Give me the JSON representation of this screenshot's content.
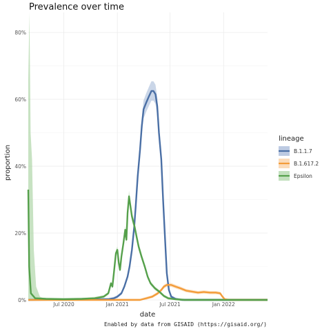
{
  "chart_data": {
    "type": "line",
    "title": "Prevalence over time",
    "xlabel": "date",
    "ylabel": "proportion",
    "caption": "Enabled by data from GISAID (https://gisaid.org/)",
    "legend": {
      "title": "lineage",
      "position": "right"
    },
    "x_ticks": [
      {
        "label": "Jul 2020",
        "date": "2020-07-01"
      },
      {
        "label": "Jan 2021",
        "date": "2021-01-01"
      },
      {
        "label": "Jul 2021",
        "date": "2021-07-01"
      },
      {
        "label": "Jan 2022",
        "date": "2022-01-01"
      }
    ],
    "y_ticks": [
      {
        "label": "0%",
        "value": 0
      },
      {
        "label": "20%",
        "value": 0.2
      },
      {
        "label": "40%",
        "value": 0.4
      },
      {
        "label": "60%",
        "value": 0.6
      },
      {
        "label": "80%",
        "value": 0.8
      }
    ],
    "xlim": [
      "2020-03-01",
      "2022-06-01"
    ],
    "ylim": [
      0,
      0.86
    ],
    "grid": true,
    "series": [
      {
        "name": "B.1.1.7",
        "color": "#4a6fa5",
        "band_color": "#9fb4d6",
        "points": [
          [
            "2020-03-01",
            0
          ],
          [
            "2020-12-01",
            0.002
          ],
          [
            "2020-12-20",
            0.005
          ],
          [
            "2021-01-01",
            0.01
          ],
          [
            "2021-01-15",
            0.02
          ],
          [
            "2021-01-25",
            0.04
          ],
          [
            "2021-02-05",
            0.07
          ],
          [
            "2021-02-12",
            0.1
          ],
          [
            "2021-02-20",
            0.15
          ],
          [
            "2021-02-28",
            0.22
          ],
          [
            "2021-03-05",
            0.28
          ],
          [
            "2021-03-12",
            0.37
          ],
          [
            "2021-03-20",
            0.45
          ],
          [
            "2021-03-26",
            0.52
          ],
          [
            "2021-04-01",
            0.57
          ],
          [
            "2021-04-10",
            0.59
          ],
          [
            "2021-04-20",
            0.61
          ],
          [
            "2021-04-28",
            0.625
          ],
          [
            "2021-05-05",
            0.625
          ],
          [
            "2021-05-12",
            0.615
          ],
          [
            "2021-05-18",
            0.58
          ],
          [
            "2021-05-24",
            0.5
          ],
          [
            "2021-06-01",
            0.42
          ],
          [
            "2021-06-07",
            0.3
          ],
          [
            "2021-06-14",
            0.18
          ],
          [
            "2021-06-20",
            0.08
          ],
          [
            "2021-06-27",
            0.03
          ],
          [
            "2021-07-05",
            0.01
          ],
          [
            "2021-07-20",
            0.003
          ],
          [
            "2021-08-10",
            0
          ],
          [
            "2022-06-01",
            0
          ]
        ]
      },
      {
        "name": "B.1.617.2",
        "color": "#f39c3a",
        "band_color": "#f9cc9b",
        "points": [
          [
            "2020-03-01",
            0
          ],
          [
            "2021-03-20",
            0
          ],
          [
            "2021-04-10",
            0.005
          ],
          [
            "2021-05-01",
            0.01
          ],
          [
            "2021-05-20",
            0.02
          ],
          [
            "2021-06-01",
            0.03
          ],
          [
            "2021-06-10",
            0.04
          ],
          [
            "2021-06-20",
            0.045
          ],
          [
            "2021-07-05",
            0.045
          ],
          [
            "2021-07-20",
            0.04
          ],
          [
            "2021-08-05",
            0.035
          ],
          [
            "2021-08-25",
            0.028
          ],
          [
            "2021-09-15",
            0.025
          ],
          [
            "2021-10-05",
            0.022
          ],
          [
            "2021-10-25",
            0.024
          ],
          [
            "2021-11-15",
            0.022
          ],
          [
            "2021-12-05",
            0.022
          ],
          [
            "2021-12-20",
            0.02
          ],
          [
            "2021-12-28",
            0.01
          ],
          [
            "2022-01-05",
            0.002
          ],
          [
            "2022-01-20",
            0
          ],
          [
            "2022-06-01",
            0
          ]
        ]
      },
      {
        "name": "Epsilon",
        "color": "#55a04b",
        "band_color": "#a9d3a2",
        "points": [
          [
            "2020-03-01",
            0.33
          ],
          [
            "2020-03-04",
            0.1
          ],
          [
            "2020-03-10",
            0.02
          ],
          [
            "2020-03-25",
            0.005
          ],
          [
            "2020-05-01",
            0.003
          ],
          [
            "2020-07-01",
            0.002
          ],
          [
            "2020-09-01",
            0.003
          ],
          [
            "2020-10-15",
            0.005
          ],
          [
            "2020-11-15",
            0.01
          ],
          [
            "2020-12-01",
            0.02
          ],
          [
            "2020-12-10",
            0.05
          ],
          [
            "2020-12-15",
            0.04
          ],
          [
            "2020-12-20",
            0.08
          ],
          [
            "2020-12-27",
            0.14
          ],
          [
            "2021-01-01",
            0.15
          ],
          [
            "2021-01-06",
            0.11
          ],
          [
            "2021-01-10",
            0.09
          ],
          [
            "2021-01-15",
            0.13
          ],
          [
            "2021-01-22",
            0.17
          ],
          [
            "2021-01-28",
            0.21
          ],
          [
            "2021-02-01",
            0.18
          ],
          [
            "2021-02-05",
            0.26
          ],
          [
            "2021-02-10",
            0.31
          ],
          [
            "2021-02-15",
            0.28
          ],
          [
            "2021-02-20",
            0.25
          ],
          [
            "2021-03-01",
            0.22
          ],
          [
            "2021-03-08",
            0.19
          ],
          [
            "2021-03-15",
            0.16
          ],
          [
            "2021-03-25",
            0.13
          ],
          [
            "2021-04-05",
            0.1
          ],
          [
            "2021-04-15",
            0.07
          ],
          [
            "2021-04-25",
            0.05
          ],
          [
            "2021-05-10",
            0.035
          ],
          [
            "2021-05-25",
            0.025
          ],
          [
            "2021-06-10",
            0.012
          ],
          [
            "2021-06-25",
            0.005
          ],
          [
            "2021-07-20",
            0.002
          ],
          [
            "2021-08-20",
            0
          ],
          [
            "2022-06-01",
            0
          ]
        ],
        "band_spike": [
          [
            "2020-03-01",
            0.66
          ],
          [
            "2020-03-05",
            0.86
          ],
          [
            "2020-03-09",
            0.5
          ],
          [
            "2020-03-14",
            0.42
          ],
          [
            "2020-03-20",
            0.15
          ],
          [
            "2020-03-28",
            0.04
          ],
          [
            "2020-04-10",
            0.01
          ],
          [
            "2020-05-01",
            0
          ]
        ]
      }
    ]
  }
}
